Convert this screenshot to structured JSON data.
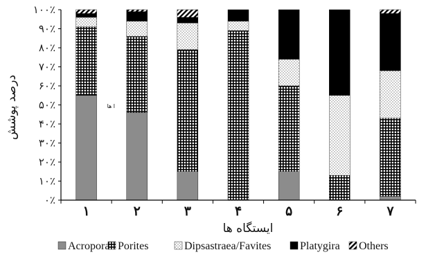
{
  "chart_data": {
    "type": "bar",
    "stacked": true,
    "title": "",
    "xlabel": "ایستگاه ها",
    "ylabel": "درصد پوشش",
    "ylim": [
      0,
      100
    ],
    "y_ticks": [
      "۰٪",
      "۱۰٪",
      "۲۰٪",
      "۳۰٪",
      "۴۰٪",
      "۵۰٪",
      "۶۰٪",
      "۷۰٪",
      "۸۰٪",
      "۹۰٪",
      "۱۰۰٪"
    ],
    "categories": [
      "۱",
      "۲",
      "۳",
      "۴",
      "۵",
      "۶",
      "۷"
    ],
    "series": [
      {
        "name": "Acropora",
        "color": "#8c8c8c",
        "pattern": "solid-gray",
        "values": [
          55,
          46,
          15,
          0,
          15,
          0,
          2
        ]
      },
      {
        "name": "Porites",
        "color": "#000000",
        "pattern": "grid",
        "values": [
          36,
          40,
          64,
          89,
          45,
          13,
          41
        ]
      },
      {
        "name": "Dipsastraea/Favites",
        "color": "#555555",
        "pattern": "dots",
        "values": [
          5,
          8,
          14,
          5,
          14,
          42,
          25
        ]
      },
      {
        "name": "Platygira",
        "color": "#000000",
        "pattern": "solid-black",
        "values": [
          2,
          5,
          3,
          6,
          26,
          45,
          30
        ]
      },
      {
        "name": "Others",
        "color": "#000000",
        "pattern": "diagonal",
        "values": [
          2,
          1,
          4,
          0,
          0,
          0,
          2
        ]
      }
    ],
    "legend_position": "bottom",
    "grid": false,
    "stray_label": "ا ها"
  }
}
